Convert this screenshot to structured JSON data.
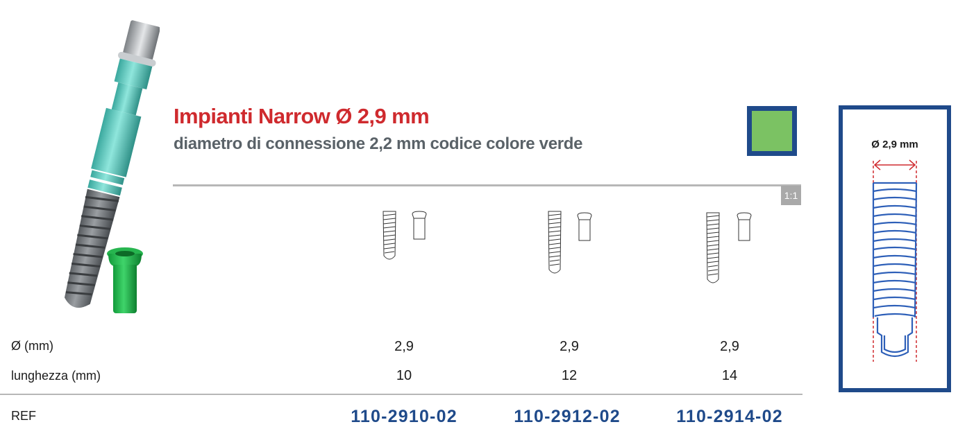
{
  "header": {
    "title": "Impianti Narrow Ø 2,9 mm",
    "subtitle": "diametro di connessione 2,2 mm codice colore verde"
  },
  "colors": {
    "accent_red": "#cf2a2e",
    "brand_blue": "#1f4a8a",
    "code_green": "#7bc263",
    "implant_teal": "#5fcfc4",
    "implant_gray": "#6f7377",
    "rule_gray": "#b7b7b7"
  },
  "scale_badge": "1:1",
  "table": {
    "labels": {
      "diameter": "Ø (mm)",
      "length": "lunghezza (mm)",
      "ref": "REF"
    },
    "columns": [
      {
        "diameter": "2,9",
        "length": "10",
        "ref": "110-2910-02"
      },
      {
        "diameter": "2,9",
        "length": "12",
        "ref": "110-2912-02"
      },
      {
        "diameter": "2,9",
        "length": "14",
        "ref": "110-2914-02"
      }
    ]
  },
  "diagram": {
    "diameter_label": "Ø 2,9 mm"
  },
  "icons": {
    "implant": "implant-icon",
    "cap": "cover-cap-icon",
    "arrow": "double-arrow-icon"
  }
}
